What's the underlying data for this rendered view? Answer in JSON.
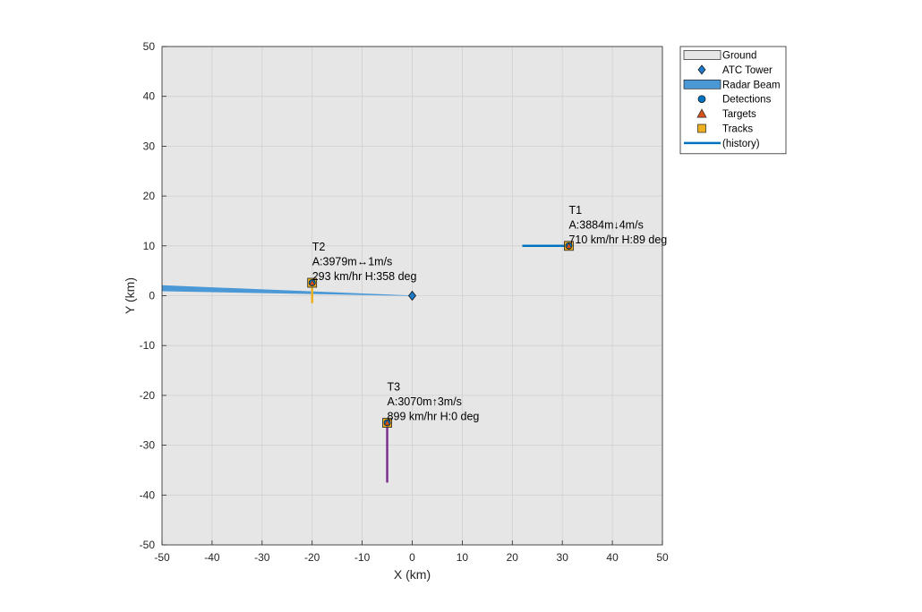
{
  "chart_data": {
    "type": "scatter",
    "title": "",
    "xlabel": "X (km)",
    "ylabel": "Y (km)",
    "xlim": [
      -50,
      50
    ],
    "ylim": [
      -50,
      50
    ],
    "xticks": [
      -50,
      -40,
      -30,
      -20,
      -10,
      0,
      10,
      20,
      30,
      40,
      50
    ],
    "yticks": [
      -50,
      -40,
      -30,
      -20,
      -10,
      0,
      10,
      20,
      30,
      40,
      50
    ],
    "grid": true,
    "legend_position": "outside-top-right",
    "legend": [
      {
        "label": "Ground",
        "symbol": "patch",
        "color": "#e6e6e6"
      },
      {
        "label": "ATC Tower",
        "symbol": "diamond",
        "color": "#1f78c8"
      },
      {
        "label": "Radar Beam",
        "symbol": "patch",
        "color": "#4a98d6"
      },
      {
        "label": "Detections",
        "symbol": "circle",
        "color": "#0072bd"
      },
      {
        "label": "Targets",
        "symbol": "triangle",
        "color": "#d95319"
      },
      {
        "label": "Tracks",
        "symbol": "square",
        "color": "#edb120"
      },
      {
        "label": "(history)",
        "symbol": "line",
        "color": "#0072bd"
      }
    ],
    "ground": {
      "x": [
        -50,
        50
      ],
      "y": [
        -50,
        50
      ],
      "color": "#e6e6e6"
    },
    "atc_tower": {
      "x": 0,
      "y": 0,
      "color": "#1f78c8"
    },
    "radar_beam": {
      "color": "#4a98d6",
      "polygon": [
        [
          0,
          0.05
        ],
        [
          -50,
          2.1
        ],
        [
          -50,
          0.9
        ],
        [
          0,
          -0.05
        ]
      ]
    },
    "targets": [
      {
        "id": "T1",
        "position": [
          31.3,
          10.0
        ],
        "history": {
          "x": [
            22,
            31.3
          ],
          "y": [
            10.0,
            10.0
          ],
          "color": "#0072bd"
        },
        "lines": [
          "T1",
          "A:3884m↓4m/s",
          "710 km/hr  H:89 deg"
        ]
      },
      {
        "id": "T2",
        "position": [
          -20.0,
          2.6
        ],
        "history": {
          "x": [
            -20.0,
            -20.0
          ],
          "y": [
            2.6,
            -1.5
          ],
          "color": "#edb120"
        },
        "lines": [
          "T2",
          "A:3979m↔1m/s",
          "293 km/hr  H:358 deg"
        ]
      },
      {
        "id": "T3",
        "position": [
          -5.0,
          -25.5
        ],
        "history": {
          "x": [
            -5.0,
            -5.0
          ],
          "y": [
            -25.5,
            -37.5
          ],
          "color": "#7e2f8e"
        },
        "lines": [
          "T3",
          "A:3070m↑3m/s",
          "899 km/hr  H:0 deg"
        ]
      }
    ]
  }
}
